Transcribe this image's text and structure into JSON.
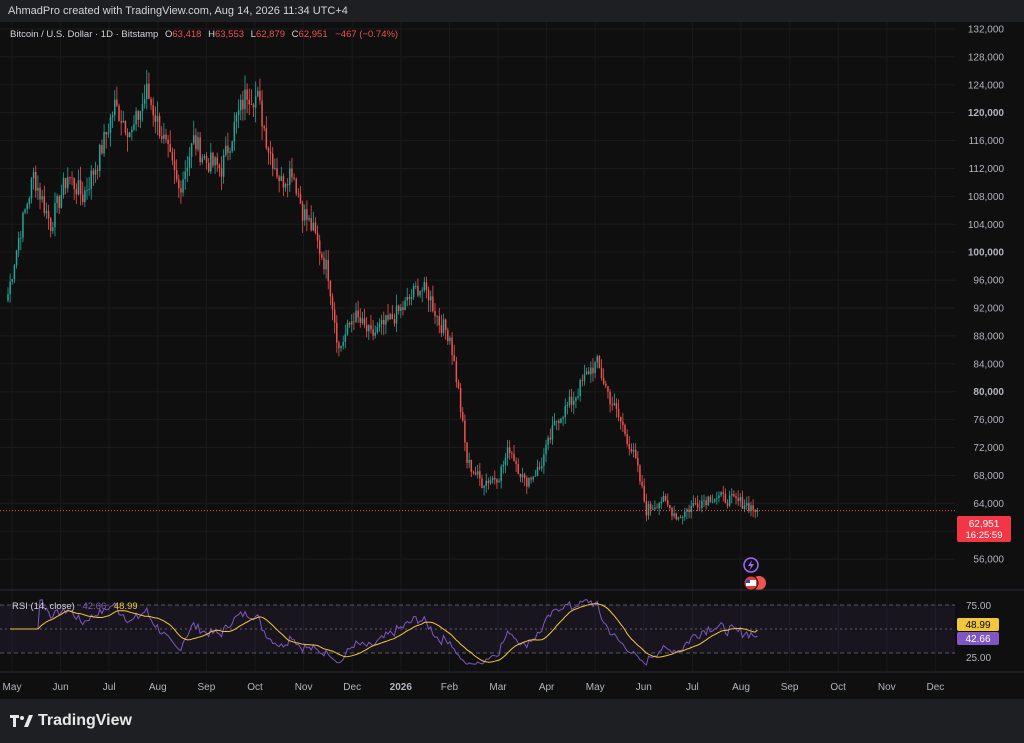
{
  "header": {
    "author_line": "AhmadPro created with TradingView.com, Aug 14, 2026 11:34 UTC+4"
  },
  "legend": {
    "symbol": "Bitcoin / U.S. Dollar · 1D · Bitstamp",
    "open_label": "O",
    "open": "63,418",
    "high_label": "H",
    "high": "63,553",
    "low_label": "L",
    "low": "62,879",
    "close_label": "C",
    "close": "62,951",
    "change": "−467 (−0.74%)"
  },
  "price_tag": {
    "value": "62,951",
    "countdown": "16:25:59"
  },
  "rsi": {
    "legend_name": "RSI (14, close)",
    "value_rsi": "42.66",
    "value_ma": "48.99",
    "level_upper": "75.00",
    "level_lower": "25.00"
  },
  "footer": {
    "brand": "TradingView"
  },
  "colors": {
    "up": "#26a69a",
    "down": "#ef5350",
    "rsi_line": "#7e57c2",
    "rsi_ma": "#f2c83a",
    "background": "#0f0f0f"
  },
  "chart_data": {
    "type": "candlestick",
    "y_axis": {
      "range": [
        52000,
        133000
      ],
      "ticks": [
        {
          "value": 56000,
          "label": "56,000",
          "bold": false
        },
        {
          "value": 60000,
          "label": "60,000",
          "bold": true
        },
        {
          "value": 64000,
          "label": "64,000",
          "bold": false
        },
        {
          "value": 68000,
          "label": "68,000",
          "bold": false
        },
        {
          "value": 72000,
          "label": "72,000",
          "bold": false
        },
        {
          "value": 76000,
          "label": "76,000",
          "bold": false
        },
        {
          "value": 80000,
          "label": "80,000",
          "bold": true
        },
        {
          "value": 84000,
          "label": "84,000",
          "bold": false
        },
        {
          "value": 88000,
          "label": "88,000",
          "bold": false
        },
        {
          "value": 92000,
          "label": "92,000",
          "bold": false
        },
        {
          "value": 96000,
          "label": "96,000",
          "bold": false
        },
        {
          "value": 100000,
          "label": "100,000",
          "bold": true
        },
        {
          "value": 104000,
          "label": "104,000",
          "bold": false
        },
        {
          "value": 108000,
          "label": "108,000",
          "bold": false
        },
        {
          "value": 112000,
          "label": "112,000",
          "bold": false
        },
        {
          "value": 116000,
          "label": "116,000",
          "bold": false
        },
        {
          "value": 120000,
          "label": "120,000",
          "bold": true
        },
        {
          "value": 124000,
          "label": "124,000",
          "bold": false
        },
        {
          "value": 128000,
          "label": "128,000",
          "bold": false
        },
        {
          "value": 132000,
          "label": "132,000",
          "bold": false
        }
      ]
    },
    "x_axis": {
      "labels": [
        {
          "label": "May",
          "month_index": 0,
          "bold": false
        },
        {
          "label": "Jun",
          "month_index": 1,
          "bold": false
        },
        {
          "label": "Jul",
          "month_index": 2,
          "bold": false
        },
        {
          "label": "Aug",
          "month_index": 3,
          "bold": false
        },
        {
          "label": "Sep",
          "month_index": 4,
          "bold": false
        },
        {
          "label": "Oct",
          "month_index": 5,
          "bold": false
        },
        {
          "label": "Nov",
          "month_index": 6,
          "bold": false
        },
        {
          "label": "Dec",
          "month_index": 7,
          "bold": false
        },
        {
          "label": "2026",
          "month_index": 8,
          "bold": true
        },
        {
          "label": "Feb",
          "month_index": 9,
          "bold": false
        },
        {
          "label": "Mar",
          "month_index": 10,
          "bold": false
        },
        {
          "label": "Apr",
          "month_index": 11,
          "bold": false
        },
        {
          "label": "May",
          "month_index": 12,
          "bold": false
        },
        {
          "label": "Jun",
          "month_index": 13,
          "bold": false
        },
        {
          "label": "Jul",
          "month_index": 14,
          "bold": false
        },
        {
          "label": "Aug",
          "month_index": 15,
          "bold": false
        },
        {
          "label": "Sep",
          "month_index": 16,
          "bold": false
        },
        {
          "label": "Oct",
          "month_index": 17,
          "bold": false
        },
        {
          "label": "Nov",
          "month_index": 18,
          "bold": false
        },
        {
          "label": "Dec",
          "month_index": 19,
          "bold": false
        }
      ]
    },
    "last_price": 62951,
    "price_anchors": [
      [
        0,
        94000
      ],
      [
        5,
        102000
      ],
      [
        12,
        111000
      ],
      [
        20,
        104000
      ],
      [
        28,
        111000
      ],
      [
        35,
        108000
      ],
      [
        42,
        113000
      ],
      [
        50,
        121000
      ],
      [
        58,
        117000
      ],
      [
        65,
        123000
      ],
      [
        72,
        117000
      ],
      [
        80,
        109000
      ],
      [
        87,
        116000
      ],
      [
        93,
        113000
      ],
      [
        100,
        112000
      ],
      [
        107,
        119000
      ],
      [
        112,
        123000
      ],
      [
        117,
        122000
      ],
      [
        122,
        115000
      ],
      [
        128,
        110000
      ],
      [
        133,
        112000
      ],
      [
        138,
        106000
      ],
      [
        143,
        103000
      ],
      [
        150,
        97000
      ],
      [
        155,
        86000
      ],
      [
        162,
        91000
      ],
      [
        170,
        88000
      ],
      [
        178,
        90000
      ],
      [
        185,
        92000
      ],
      [
        192,
        95000
      ],
      [
        197,
        94000
      ],
      [
        202,
        90000
      ],
      [
        207,
        88000
      ],
      [
        211,
        80000
      ],
      [
        215,
        70000
      ],
      [
        222,
        67000
      ],
      [
        230,
        68000
      ],
      [
        235,
        72000
      ],
      [
        242,
        67000
      ],
      [
        249,
        69000
      ],
      [
        257,
        76000
      ],
      [
        265,
        79000
      ],
      [
        272,
        83000
      ],
      [
        276,
        84000
      ],
      [
        282,
        79000
      ],
      [
        288,
        75000
      ],
      [
        294,
        70000
      ],
      [
        299,
        63000
      ],
      [
        306,
        64500
      ],
      [
        314,
        62000
      ],
      [
        322,
        64000
      ],
      [
        330,
        65000
      ],
      [
        338,
        64500
      ],
      [
        345,
        64000
      ],
      [
        351,
        62951
      ]
    ],
    "rsi_range": [
      0,
      100
    ],
    "rsi_levels": [
      75,
      50,
      25
    ],
    "rsi_last": 42.66,
    "rsi_ma_last": 48.99
  }
}
